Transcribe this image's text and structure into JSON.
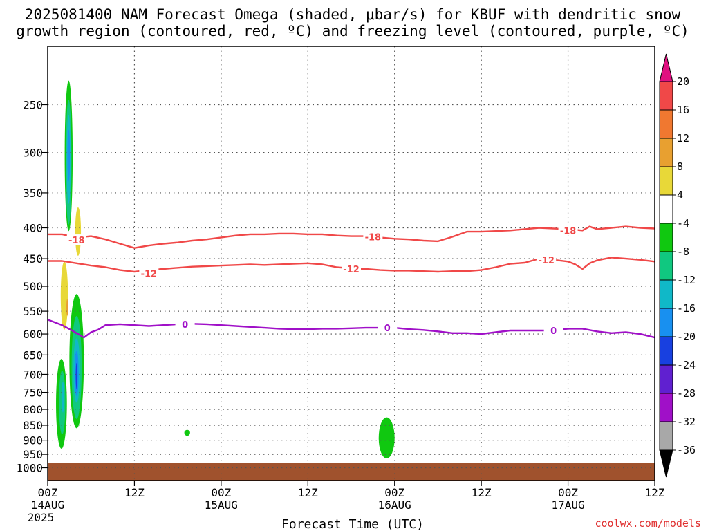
{
  "chart_data": {
    "type": "area",
    "title_lines": [
      "2025081400 NAM Forecast Omega (shaded, μbar/s) for KBUF with dendritic snow",
      "growth region (contoured, red, ºC) and freezing level (contoured, purple, ºC)"
    ],
    "xlabel": "Forecast Time (UTC)",
    "ylabel": "",
    "credit": "coolwx.com/models",
    "y_axis": {
      "scale": "log-pressure",
      "range_hpa": [
        1050,
        200
      ],
      "reversed": true,
      "ticks": [
        250,
        300,
        350,
        400,
        450,
        500,
        550,
        600,
        650,
        700,
        750,
        800,
        850,
        900,
        950,
        1000
      ]
    },
    "x_axis": {
      "range_hours": [
        0,
        84
      ],
      "ticks": [
        {
          "hour": 0,
          "label": "00Z",
          "sub": "14AUG",
          "sub2": "2025"
        },
        {
          "hour": 12,
          "label": "12Z",
          "sub": "",
          "sub2": ""
        },
        {
          "hour": 24,
          "label": "00Z",
          "sub": "15AUG",
          "sub2": ""
        },
        {
          "hour": 36,
          "label": "12Z",
          "sub": "",
          "sub2": ""
        },
        {
          "hour": 48,
          "label": "00Z",
          "sub": "16AUG",
          "sub2": ""
        },
        {
          "hour": 60,
          "label": "12Z",
          "sub": "",
          "sub2": ""
        },
        {
          "hour": 72,
          "label": "00Z",
          "sub": "17AUG",
          "sub2": ""
        },
        {
          "hour": 84,
          "label": "12Z",
          "sub": "",
          "sub2": ""
        }
      ]
    },
    "grid": true,
    "colorbar": {
      "placement": "right",
      "levels": [
        20,
        16,
        12,
        8,
        4,
        -4,
        -8,
        -12,
        -16,
        -20,
        -24,
        -28,
        -32,
        -36
      ],
      "top_triangle_color": "#e01080",
      "bottom_triangle_color": "#000000",
      "bands": [
        {
          "from": 20,
          "to": 16,
          "color": "#f04848"
        },
        {
          "from": 16,
          "to": 12,
          "color": "#f07830"
        },
        {
          "from": 12,
          "to": 8,
          "color": "#e8a030"
        },
        {
          "from": 8,
          "to": 4,
          "color": "#e8d838"
        },
        {
          "from": 4,
          "to": -4,
          "color": "#ffffff"
        },
        {
          "from": -4,
          "to": -8,
          "color": "#10c810"
        },
        {
          "from": -8,
          "to": -12,
          "color": "#10c880"
        },
        {
          "from": -12,
          "to": -16,
          "color": "#10b8c8"
        },
        {
          "from": -16,
          "to": -20,
          "color": "#1890f0"
        },
        {
          "from": -20,
          "to": -24,
          "color": "#1840e0"
        },
        {
          "from": -24,
          "to": -28,
          "color": "#6020d0"
        },
        {
          "from": -28,
          "to": -32,
          "color": "#a010c8"
        },
        {
          "from": -32,
          "to": -36,
          "color": "#a8a8a8"
        }
      ]
    },
    "ground_fill": {
      "color": "#a0522d",
      "top_hpa": 982
    },
    "contours": [
      {
        "value": -18,
        "label": "-18",
        "color": "#f04848",
        "points": [
          [
            0,
            410
          ],
          [
            2,
            410
          ],
          [
            4,
            415
          ],
          [
            6,
            413
          ],
          [
            8,
            418
          ],
          [
            10,
            425
          ],
          [
            12,
            432
          ],
          [
            14,
            428
          ],
          [
            16,
            425
          ],
          [
            18,
            423
          ],
          [
            20,
            420
          ],
          [
            22,
            418
          ],
          [
            24,
            415
          ],
          [
            26,
            412
          ],
          [
            28,
            410
          ],
          [
            30,
            410
          ],
          [
            32,
            409
          ],
          [
            34,
            409
          ],
          [
            36,
            410
          ],
          [
            38,
            410
          ],
          [
            40,
            412
          ],
          [
            42,
            413
          ],
          [
            44,
            413
          ],
          [
            46,
            415
          ],
          [
            48,
            417
          ],
          [
            50,
            418
          ],
          [
            52,
            420
          ],
          [
            54,
            421
          ],
          [
            56,
            414
          ],
          [
            58,
            406
          ],
          [
            60,
            406
          ],
          [
            62,
            405
          ],
          [
            64,
            404
          ],
          [
            66,
            402
          ],
          [
            68,
            400
          ],
          [
            70,
            401
          ],
          [
            72,
            402
          ],
          [
            74,
            404
          ],
          [
            75,
            398
          ],
          [
            76,
            402
          ],
          [
            78,
            400
          ],
          [
            80,
            398
          ],
          [
            82,
            400
          ],
          [
            84,
            401
          ]
        ],
        "label_positions": [
          [
            4,
            419
          ],
          [
            45,
            414
          ],
          [
            72,
            404
          ]
        ]
      },
      {
        "value": -12,
        "label": "-12",
        "color": "#f04848",
        "points": [
          [
            0,
            454
          ],
          [
            2,
            454
          ],
          [
            4,
            458
          ],
          [
            6,
            462
          ],
          [
            8,
            465
          ],
          [
            10,
            470
          ],
          [
            12,
            473
          ],
          [
            14,
            470
          ],
          [
            16,
            468
          ],
          [
            18,
            466
          ],
          [
            20,
            464
          ],
          [
            22,
            463
          ],
          [
            24,
            462
          ],
          [
            26,
            461
          ],
          [
            28,
            460
          ],
          [
            30,
            461
          ],
          [
            32,
            460
          ],
          [
            34,
            459
          ],
          [
            36,
            458
          ],
          [
            38,
            460
          ],
          [
            40,
            465
          ],
          [
            42,
            467
          ],
          [
            44,
            468
          ],
          [
            46,
            470
          ],
          [
            48,
            471
          ],
          [
            50,
            471
          ],
          [
            52,
            472
          ],
          [
            54,
            473
          ],
          [
            56,
            472
          ],
          [
            58,
            472
          ],
          [
            60,
            470
          ],
          [
            62,
            465
          ],
          [
            64,
            459
          ],
          [
            66,
            457
          ],
          [
            68,
            450
          ],
          [
            70,
            452
          ],
          [
            72,
            455
          ],
          [
            73,
            460
          ],
          [
            74,
            468
          ],
          [
            75,
            458
          ],
          [
            76,
            453
          ],
          [
            78,
            448
          ],
          [
            80,
            450
          ],
          [
            82,
            452
          ],
          [
            84,
            455
          ]
        ],
        "label_positions": [
          [
            14,
            476
          ],
          [
            42,
            468
          ],
          [
            69,
            452
          ]
        ]
      },
      {
        "value": 0,
        "label": "0",
        "color": "#a010c8",
        "points": [
          [
            0,
            568
          ],
          [
            2,
            580
          ],
          [
            4,
            598
          ],
          [
            5,
            608
          ],
          [
            6,
            596
          ],
          [
            7,
            590
          ],
          [
            8,
            580
          ],
          [
            10,
            578
          ],
          [
            12,
            580
          ],
          [
            14,
            582
          ],
          [
            16,
            580
          ],
          [
            18,
            578
          ],
          [
            20,
            577
          ],
          [
            22,
            578
          ],
          [
            24,
            580
          ],
          [
            26,
            582
          ],
          [
            28,
            584
          ],
          [
            30,
            586
          ],
          [
            32,
            588
          ],
          [
            34,
            589
          ],
          [
            36,
            589
          ],
          [
            38,
            588
          ],
          [
            40,
            588
          ],
          [
            42,
            587
          ],
          [
            44,
            586
          ],
          [
            46,
            586
          ],
          [
            48,
            586
          ],
          [
            50,
            589
          ],
          [
            52,
            591
          ],
          [
            54,
            594
          ],
          [
            56,
            598
          ],
          [
            58,
            598
          ],
          [
            60,
            600
          ],
          [
            62,
            596
          ],
          [
            64,
            592
          ],
          [
            66,
            592
          ],
          [
            68,
            592
          ],
          [
            70,
            592
          ],
          [
            72,
            588
          ],
          [
            74,
            588
          ],
          [
            76,
            594
          ],
          [
            78,
            598
          ],
          [
            80,
            596
          ],
          [
            82,
            600
          ],
          [
            84,
            608
          ]
        ],
        "label_positions": [
          [
            19,
            578
          ],
          [
            47,
            586
          ],
          [
            70,
            592
          ]
        ]
      }
    ],
    "omega_regions": [
      {
        "level": "-4..-8",
        "color": "#10c810",
        "hour_center": 2.9,
        "hpa_center": 325,
        "hour_half_width": 0.55,
        "top_hpa": 228,
        "bottom_hpa": 405
      },
      {
        "level": "-8..-12",
        "color": "#10c880",
        "hour_center": 2.9,
        "hpa_center": 320,
        "hour_half_width": 0.4,
        "top_hpa": 245,
        "bottom_hpa": 395
      },
      {
        "level": "-12..-16",
        "color": "#10b8c8",
        "hour_center": 2.9,
        "hpa_center": 305,
        "hour_half_width": 0.28,
        "top_hpa": 260,
        "bottom_hpa": 365
      },
      {
        "level": "-16..-20",
        "color": "#1890f0",
        "hour_center": 2.9,
        "hpa_center": 300,
        "hour_half_width": 0.18,
        "top_hpa": 275,
        "bottom_hpa": 335
      },
      {
        "level": "4..8",
        "color": "#e8d838",
        "hour_center": 4.2,
        "hpa_center": 405,
        "hour_half_width": 0.4,
        "top_hpa": 370,
        "bottom_hpa": 445
      },
      {
        "level": "4..8",
        "color": "#e8d838",
        "hour_center": 2.3,
        "hpa_center": 520,
        "hour_half_width": 0.5,
        "top_hpa": 455,
        "bottom_hpa": 590
      },
      {
        "level": "8..12",
        "color": "#e8a030",
        "hour_center": 2.7,
        "hpa_center": 540,
        "hour_half_width": 0.12,
        "top_hpa": 525,
        "bottom_hpa": 560
      },
      {
        "level": "-4..-8",
        "color": "#10c810",
        "hour_center": 4.0,
        "hpa_center": 700,
        "hour_half_width": 1.0,
        "top_hpa": 515,
        "bottom_hpa": 860
      },
      {
        "level": "-8..-12",
        "color": "#10c880",
        "hour_center": 4.0,
        "hpa_center": 690,
        "hour_half_width": 0.7,
        "top_hpa": 560,
        "bottom_hpa": 830
      },
      {
        "level": "-12..-16",
        "color": "#10b8c8",
        "hour_center": 4.0,
        "hpa_center": 690,
        "hour_half_width": 0.45,
        "top_hpa": 610,
        "bottom_hpa": 780
      },
      {
        "level": "-16..-20",
        "color": "#1890f0",
        "hour_center": 4.0,
        "hpa_center": 700,
        "hour_half_width": 0.28,
        "top_hpa": 640,
        "bottom_hpa": 760
      },
      {
        "level": "-20..-24",
        "color": "#1840e0",
        "hour_center": 4.0,
        "hpa_center": 705,
        "hour_half_width": 0.12,
        "top_hpa": 670,
        "bottom_hpa": 740
      },
      {
        "level": "-4..-8",
        "color": "#10c810",
        "hour_center": 1.9,
        "hpa_center": 790,
        "hour_half_width": 0.75,
        "top_hpa": 660,
        "bottom_hpa": 930
      },
      {
        "level": "-8..-12",
        "color": "#10c880",
        "hour_center": 2.0,
        "hpa_center": 770,
        "hour_half_width": 0.45,
        "top_hpa": 690,
        "bottom_hpa": 880
      },
      {
        "level": "-12..-16",
        "color": "#10b8c8",
        "hour_center": 2.1,
        "hpa_center": 760,
        "hour_half_width": 0.2,
        "top_hpa": 720,
        "bottom_hpa": 810
      },
      {
        "level": "-4..-8",
        "color": "#10c810",
        "hour_center": 19.3,
        "hpa_center": 875,
        "hour_half_width": 0.4,
        "top_hpa": 865,
        "bottom_hpa": 885
      },
      {
        "level": "-4..-8",
        "color": "#10c810",
        "hour_center": 46.9,
        "hpa_center": 885,
        "hour_half_width": 1.1,
        "top_hpa": 825,
        "bottom_hpa": 965
      }
    ]
  }
}
